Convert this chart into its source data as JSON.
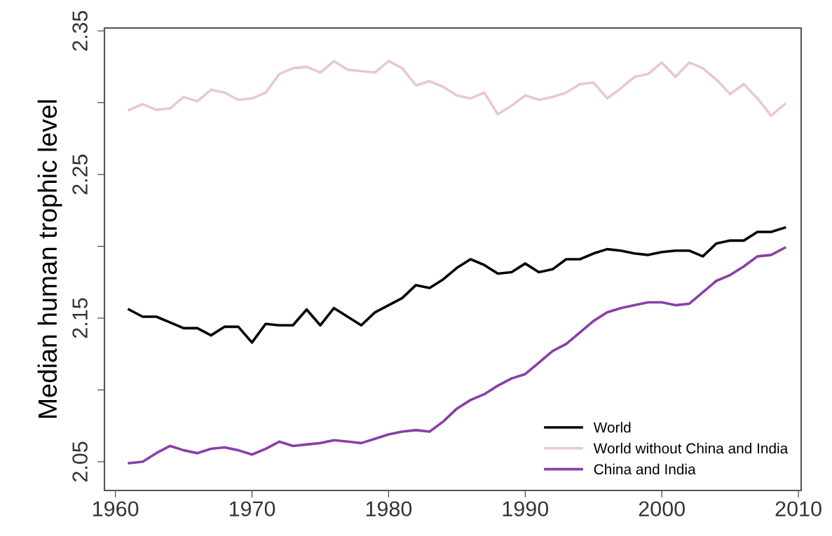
{
  "chart_data": {
    "type": "line",
    "ylabel": "Median human trophic level",
    "x": [
      1961,
      1962,
      1963,
      1964,
      1965,
      1966,
      1967,
      1968,
      1969,
      1970,
      1971,
      1972,
      1973,
      1974,
      1975,
      1976,
      1977,
      1978,
      1979,
      1980,
      1981,
      1982,
      1983,
      1984,
      1985,
      1986,
      1987,
      1988,
      1989,
      1990,
      1991,
      1992,
      1993,
      1994,
      1995,
      1996,
      1997,
      1998,
      1999,
      2000,
      2001,
      2002,
      2003,
      2004,
      2005,
      2006,
      2007,
      2008,
      2009
    ],
    "xlim": [
      1959.2,
      2010.2
    ],
    "xticks": [
      1960,
      1970,
      1980,
      1990,
      2000,
      2010
    ],
    "ylim": [
      2.03,
      2.352
    ],
    "yticks": [
      2.05,
      {
        "value": 2.1,
        "label": null
      },
      2.15,
      {
        "value": 2.2,
        "label": null
      },
      2.25,
      {
        "value": 2.3,
        "label": null
      },
      2.35
    ],
    "grid": false,
    "legend": "bottom right",
    "line_style": "solid",
    "marker": "none",
    "series": [
      {
        "name": "World",
        "color": "#000000",
        "values": [
          2.156,
          2.151,
          2.151,
          2.147,
          2.143,
          2.143,
          2.138,
          2.144,
          2.144,
          2.133,
          2.146,
          2.145,
          2.145,
          2.156,
          2.145,
          2.157,
          2.151,
          2.145,
          2.154,
          2.159,
          2.164,
          2.173,
          2.171,
          2.177,
          2.185,
          2.191,
          2.187,
          2.181,
          2.182,
          2.188,
          2.182,
          2.184,
          2.191,
          2.191,
          2.195,
          2.198,
          2.197,
          2.195,
          2.194,
          2.196,
          2.197,
          2.197,
          2.193,
          2.202,
          2.204,
          2.204,
          2.21,
          2.21,
          2.213
        ]
      },
      {
        "name": "World without China and India",
        "color": "#e8c8d2",
        "values": [
          2.295,
          2.299,
          2.295,
          2.296,
          2.304,
          2.301,
          2.309,
          2.307,
          2.302,
          2.303,
          2.307,
          2.32,
          2.324,
          2.325,
          2.321,
          2.329,
          2.323,
          2.322,
          2.321,
          2.329,
          2.324,
          2.312,
          2.315,
          2.311,
          2.305,
          2.303,
          2.307,
          2.292,
          2.298,
          2.305,
          2.302,
          2.304,
          2.307,
          2.313,
          2.314,
          2.303,
          2.31,
          2.318,
          2.32,
          2.328,
          2.318,
          2.328,
          2.324,
          2.316,
          2.306,
          2.313,
          2.303,
          2.291,
          2.299
        ]
      },
      {
        "name": "China and India",
        "color": "#8a3fa6",
        "values": [
          2.049,
          2.05,
          2.056,
          2.061,
          2.058,
          2.056,
          2.059,
          2.06,
          2.058,
          2.055,
          2.059,
          2.064,
          2.061,
          2.062,
          2.063,
          2.065,
          2.064,
          2.063,
          2.066,
          2.069,
          2.071,
          2.072,
          2.071,
          2.078,
          2.087,
          2.093,
          2.097,
          2.103,
          2.108,
          2.111,
          2.119,
          2.127,
          2.132,
          2.14,
          2.148,
          2.154,
          2.157,
          2.159,
          2.161,
          2.161,
          2.159,
          2.16,
          2.168,
          2.176,
          2.18,
          2.186,
          2.193,
          2.194,
          2.199
        ]
      }
    ]
  }
}
